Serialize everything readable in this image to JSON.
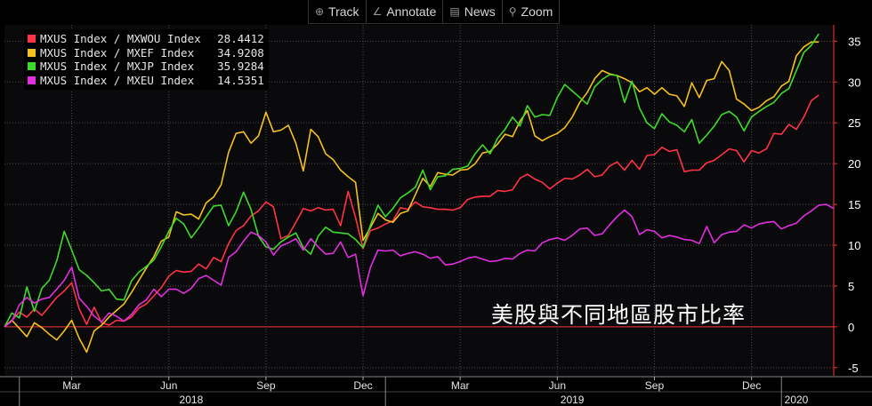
{
  "toolbar": {
    "track_label": "Track",
    "annotate_label": "Annotate",
    "news_label": "News",
    "zoom_label": "Zoom"
  },
  "annotation": "美股與不同地區股市比率",
  "colors": {
    "background": "#000000",
    "grid": "#4d4d4d",
    "zero_line": "#ff3333",
    "axis_text": "#ffffff"
  },
  "chart_data": {
    "type": "line",
    "title": "",
    "xlabel": "",
    "ylabel": "",
    "ylim": [
      -6,
      37
    ],
    "yticks": [
      -5,
      0,
      5,
      10,
      15,
      20,
      25,
      30,
      35
    ],
    "xlim": [
      0,
      111
    ],
    "x_tick_labels": [
      {
        "x": 9,
        "label": "Mar"
      },
      {
        "x": 22,
        "label": "Jun"
      },
      {
        "x": 35,
        "label": "Sep"
      },
      {
        "x": 48,
        "label": "Dec"
      },
      {
        "x": 61,
        "label": "Mar"
      },
      {
        "x": 74,
        "label": "Jun"
      },
      {
        "x": 87,
        "label": "Sep"
      },
      {
        "x": 100,
        "label": "Dec"
      }
    ],
    "year_labels": [
      {
        "x": 25,
        "label": "2018"
      },
      {
        "x": 76,
        "label": "2019"
      },
      {
        "x": 106,
        "label": "2020"
      }
    ],
    "year_dividers": [
      2,
      51,
      104
    ],
    "grid": true,
    "legend_position": "top-left",
    "series": [
      {
        "name": "MXUS Index / MXWOU Index",
        "last": "28.4412",
        "color": "#ff3344",
        "values": [
          0,
          0.8,
          1.8,
          1.2,
          2.2,
          1.4,
          2.5,
          3.6,
          4.4,
          5.4,
          2.2,
          0.3,
          2.4,
          0.5,
          0.2,
          0.8,
          0.7,
          1.2,
          2.3,
          2.8,
          3.8,
          4.8,
          6.2,
          6.9,
          6.7,
          6.8,
          7.7,
          7.1,
          8.5,
          8.0,
          10.2,
          11.8,
          12.4,
          13.6,
          14.2,
          15.3,
          14.7,
          10.8,
          11.2,
          12.8,
          14.5,
          14.2,
          14.6,
          14.3,
          14.4,
          12.4,
          16.6,
          13.4,
          9.6,
          11.8,
          12.1,
          12.6,
          13.0,
          14.6,
          14.4,
          15.3,
          14.7,
          14.6,
          14.4,
          14.4,
          14.3,
          14.6,
          15.6,
          15.9,
          16.0,
          16.0,
          16.7,
          16.6,
          16.8,
          18.2,
          18.7,
          18.1,
          17.7,
          16.9,
          17.6,
          18.2,
          18.1,
          18.6,
          19.3,
          18.4,
          18.6,
          19.7,
          20.2,
          19.2,
          20.4,
          19.3,
          21.0,
          21.1,
          22.0,
          21.5,
          21.7,
          19.0,
          19.2,
          19.2,
          20.1,
          20.4,
          21.1,
          21.8,
          21.6,
          20.2,
          21.6,
          21.3,
          21.8,
          23.7,
          23.6,
          24.8,
          24.2,
          25.7,
          27.7,
          28.4
        ]
      },
      {
        "name": "MXUS Index / MXEF Index",
        "last": "34.9208",
        "color": "#f5c21b",
        "values": [
          0,
          0.8,
          -0.2,
          -1.2,
          0.5,
          -0.1,
          -0.9,
          -1.6,
          -0.5,
          0.8,
          -1.4,
          -3.1,
          -0.5,
          0.2,
          1.2,
          2.0,
          2.8,
          4.2,
          5.7,
          7.2,
          8.6,
          10.5,
          11.0,
          14.1,
          13.7,
          13.8,
          13.2,
          15.2,
          15.9,
          17.4,
          21.4,
          23.7,
          23.9,
          22.5,
          23.4,
          26.3,
          23.9,
          24.1,
          24.7,
          22.5,
          19.1,
          24.2,
          23.3,
          21.2,
          20.5,
          19.2,
          18.4,
          17.7,
          10.6,
          12.2,
          13.9,
          13.1,
          12.8,
          13.9,
          14.2,
          16.2,
          18.2,
          17.2,
          18.9,
          18.7,
          18.6,
          19.2,
          19.3,
          20.0,
          21.3,
          21.5,
          22.4,
          23.6,
          23.3,
          25.2,
          26.5,
          23.4,
          22.8,
          23.3,
          23.7,
          24.4,
          25.7,
          27.5,
          28.7,
          30.4,
          31.4,
          31.0,
          30.8,
          30.4,
          29.9,
          28.8,
          29.3,
          28.5,
          29.3,
          28.5,
          28.3,
          27.0,
          29.9,
          28.1,
          30.2,
          30.4,
          32.5,
          31.4,
          27.9,
          27.3,
          26.5,
          26.9,
          27.7,
          28.2,
          29.5,
          30.1,
          33.2,
          34.3,
          34.9,
          34.9
        ]
      },
      {
        "name": "MXUS Index / MXJP Index",
        "last": "35.9284",
        "color": "#3ddc2a",
        "values": [
          0,
          1.7,
          1.1,
          4.9,
          1.9,
          4.7,
          5.7,
          8.1,
          11.7,
          9.4,
          7.0,
          6.3,
          5.4,
          4.4,
          4.6,
          3.4,
          3.3,
          5.6,
          6.7,
          7.4,
          8.2,
          9.8,
          11.7,
          13.3,
          12.6,
          10.9,
          12.1,
          13.5,
          14.8,
          14.9,
          12.4,
          14.1,
          16.5,
          14.4,
          11.1,
          9.8,
          9.5,
          10.4,
          11.0,
          11.5,
          9.7,
          8.9,
          11.1,
          12.2,
          11.6,
          11.5,
          11.4,
          10.7,
          9.7,
          12.5,
          14.9,
          13.5,
          14.5,
          15.8,
          16.4,
          17.1,
          19.2,
          16.8,
          18.4,
          18.5,
          19.3,
          19.4,
          19.7,
          21.2,
          22.3,
          21.2,
          23.1,
          24.2,
          25.7,
          24.6,
          27.1,
          25.7,
          26.0,
          25.9,
          28.1,
          29.7,
          28.9,
          28.1,
          27.3,
          29.4,
          30.3,
          30.9,
          30.8,
          27.5,
          30.1,
          26.8,
          25.0,
          24.3,
          26.1,
          25.1,
          24.7,
          23.9,
          25.4,
          22.5,
          23.5,
          24.6,
          26.0,
          26.4,
          25.7,
          24.0,
          25.7,
          26.4,
          27.0,
          27.5,
          28.6,
          29.2,
          31.4,
          33.6,
          34.5,
          35.9
        ]
      },
      {
        "name": "MXUS Index / MXEU Index",
        "last": "14.5351",
        "color": "#e22ee0",
        "values": [
          0,
          0.7,
          2.7,
          3.6,
          2.9,
          3.4,
          3.6,
          4.6,
          5.7,
          7.3,
          3.5,
          2.5,
          1.3,
          0.6,
          1.7,
          1.3,
          0.7,
          1.5,
          2.7,
          3.3,
          4.6,
          3.7,
          4.6,
          4.6,
          4.1,
          4.7,
          5.9,
          6.3,
          5.7,
          5.1,
          8.5,
          9.2,
          10.5,
          11.6,
          11.2,
          10.4,
          8.8,
          9.9,
          10.3,
          10.8,
          9.4,
          10.8,
          9.8,
          8.9,
          9.0,
          10.4,
          8.5,
          8.9,
          3.8,
          7.3,
          9.4,
          9.3,
          9.4,
          8.7,
          9.0,
          9.2,
          8.9,
          8.4,
          8.6,
          7.6,
          7.7,
          8.0,
          8.4,
          8.6,
          8.3,
          8.0,
          8.1,
          8.4,
          8.3,
          9.0,
          9.4,
          9.3,
          10.3,
          10.7,
          10.9,
          10.6,
          11.2,
          12.0,
          12.1,
          11.2,
          11.4,
          12.5,
          13.5,
          14.3,
          13.5,
          11.3,
          11.9,
          11.7,
          10.9,
          11.2,
          11.0,
          10.7,
          10.6,
          10.2,
          12.3,
          10.3,
          11.3,
          11.6,
          11.7,
          12.5,
          12.1,
          12.6,
          12.8,
          12.9,
          12.0,
          12.4,
          12.7,
          13.6,
          14.2,
          14.9,
          15.0,
          14.5
        ]
      }
    ]
  }
}
